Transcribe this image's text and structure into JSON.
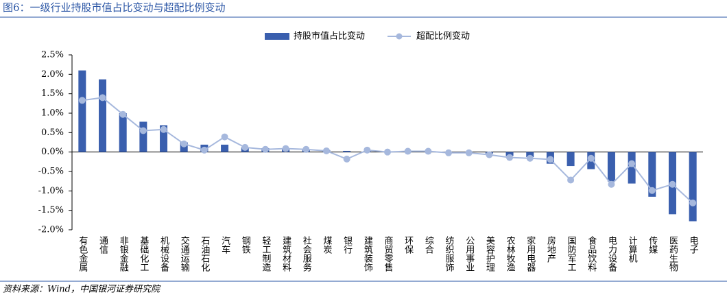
{
  "chart_data": {
    "type": "bar_line",
    "title": "图6：一级行业持股市值占比变动与超配比例变动",
    "source": "资料来源：Wind，中国银河证券研究院",
    "categories": [
      "有色金属",
      "通信",
      "非银金融",
      "基础化工",
      "机械设备",
      "交通运输",
      "石油石化",
      "汽车",
      "钢铁",
      "轻工制造",
      "建筑材料",
      "社会服务",
      "煤炭",
      "银行",
      "建筑装饰",
      "商贸零售",
      "环保",
      "综合",
      "纺织服饰",
      "公用事业",
      "美容护理",
      "农林牧渔",
      "家用电器",
      "房地产",
      "国防军工",
      "食品饮料",
      "电力设备",
      "计算机",
      "传媒",
      "医药生物",
      "电子"
    ],
    "series": [
      {
        "name": "持股市值占比变动",
        "type": "bar",
        "color": "#3a5fae",
        "values": [
          2.1,
          1.87,
          1.0,
          0.78,
          0.69,
          0.25,
          0.19,
          0.19,
          0.12,
          0.1,
          0.09,
          0.07,
          0.05,
          0.03,
          0.02,
          0.01,
          0.01,
          0.01,
          0,
          -0.01,
          -0.04,
          -0.1,
          -0.13,
          -0.3,
          -0.36,
          -0.44,
          -0.76,
          -0.81,
          -1.15,
          -1.6,
          -1.78
        ]
      },
      {
        "name": "超配比例变动",
        "type": "line",
        "color": "#a6b8dd",
        "values": [
          1.33,
          1.4,
          0.97,
          0.55,
          0.58,
          0.21,
          0.05,
          0.39,
          0.12,
          0.07,
          0.09,
          0.07,
          0.03,
          -0.18,
          0.05,
          0,
          0.02,
          0.02,
          -0.02,
          -0.02,
          -0.07,
          -0.14,
          -0.16,
          -0.19,
          -0.72,
          -0.16,
          -0.83,
          -0.3,
          -0.99,
          -0.83,
          -1.31
        ]
      }
    ],
    "ylim": [
      -2.0,
      2.5
    ],
    "yticks": [
      {
        "value": -2.0,
        "label": "-2.0%"
      },
      {
        "value": -1.5,
        "label": "-1.5%"
      },
      {
        "value": -1.0,
        "label": "-1.0%"
      },
      {
        "value": -0.5,
        "label": "-0.5%"
      },
      {
        "value": 0,
        "label": "0.0%"
      },
      {
        "value": 0.5,
        "label": "0.5%"
      },
      {
        "value": 1.0,
        "label": "1.0%"
      },
      {
        "value": 1.5,
        "label": "1.5%"
      },
      {
        "value": 2.0,
        "label": "2.0%"
      },
      {
        "value": 2.5,
        "label": "2.5%"
      }
    ]
  }
}
